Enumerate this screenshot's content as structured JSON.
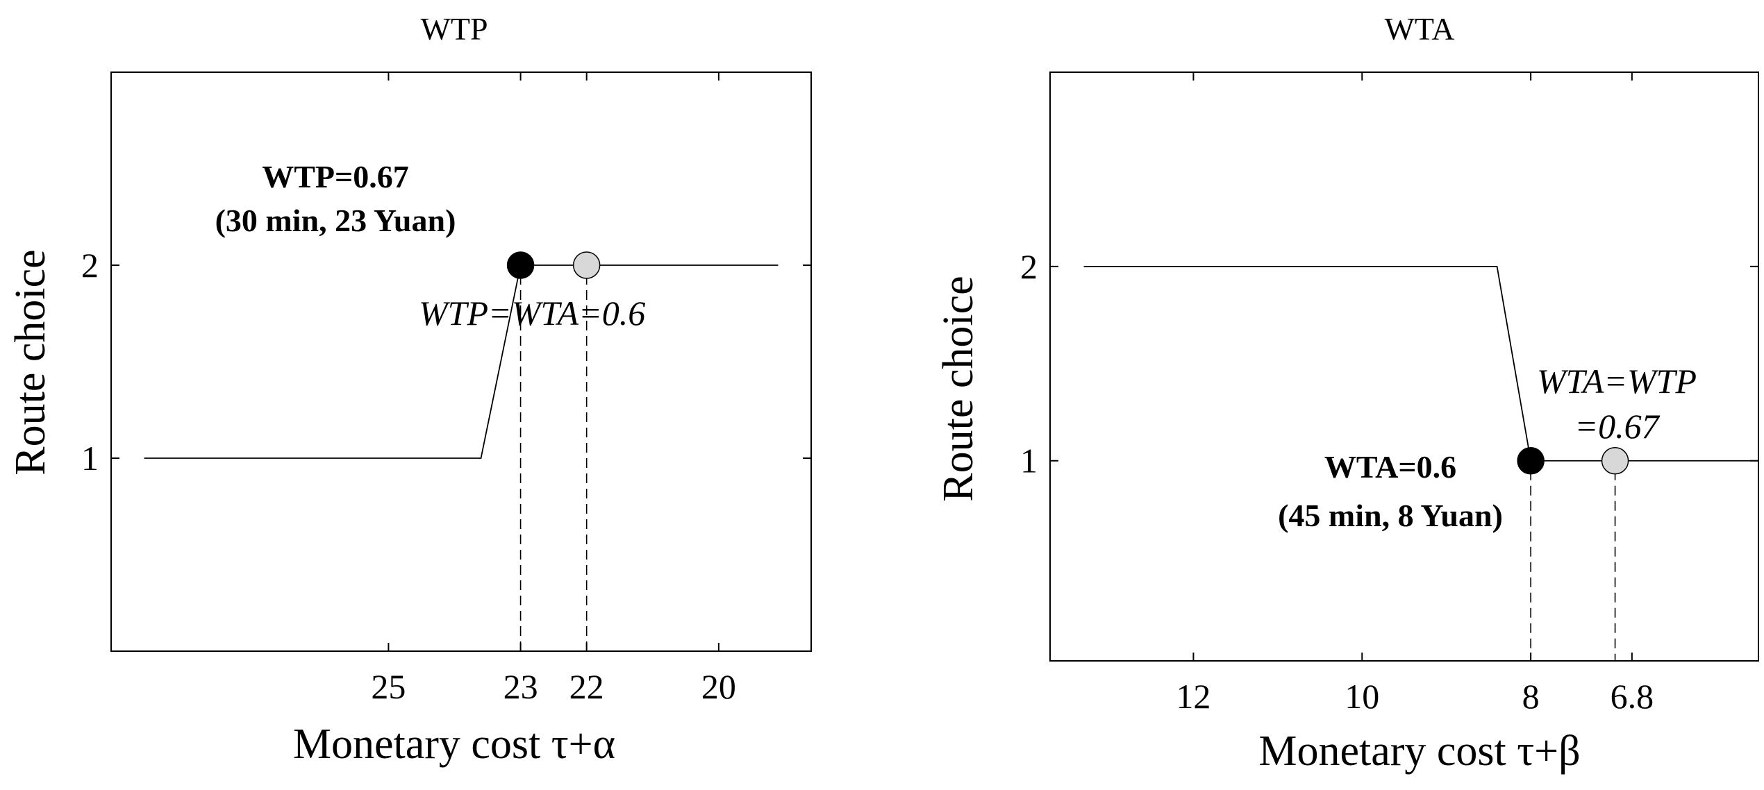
{
  "chart_data": [
    {
      "type": "line",
      "title": "WTP",
      "xlabel": "Monetary cost  τ+α",
      "ylabel": "Route choice",
      "x_reversed": true,
      "xlim": [
        29.2,
        18.6
      ],
      "ylim": [
        0,
        3.0
      ],
      "xticks": [
        {
          "value": 25,
          "label": "25"
        },
        {
          "value": 23,
          "label": "23"
        },
        {
          "value": 22,
          "label": "22"
        },
        {
          "value": 20,
          "label": "20"
        }
      ],
      "yticks": [
        {
          "value": 1,
          "label": "1"
        },
        {
          "value": 2,
          "label": "2"
        }
      ],
      "grid": false,
      "series": [
        {
          "points": [
            [
              28.7,
              1
            ],
            [
              23.6,
              1
            ],
            [
              23.0,
              2
            ],
            [
              19.1,
              2
            ]
          ]
        }
      ],
      "markers": [
        {
          "x": 23,
          "y": 2,
          "fill": "#000000"
        },
        {
          "x": 22,
          "y": 2,
          "fill": "#d8d8d8"
        }
      ],
      "dropLines": [
        23,
        22
      ],
      "annotations": [
        {
          "lines": [
            "WTP=0.67",
            "(30 min, 23 Yuan)"
          ],
          "style": "bold"
        },
        {
          "lines": [
            "WTP=WTA=0.6"
          ],
          "style": "italic"
        }
      ]
    },
    {
      "type": "line",
      "title": "WTA",
      "xlabel": "Monetary cost  τ+β",
      "ylabel": "Route choice",
      "x_reversed": true,
      "xlim": [
        13.7,
        5.3
      ],
      "ylim": [
        -0.03,
        3.0
      ],
      "xticks": [
        {
          "value": 12,
          "label": "12"
        },
        {
          "value": 10,
          "label": "10"
        },
        {
          "value": 8,
          "label": "8"
        },
        {
          "value": 6.8,
          "label": "6.8"
        }
      ],
      "yticks": [
        {
          "value": 1,
          "label": "1"
        },
        {
          "value": 2,
          "label": "2"
        }
      ],
      "grid": false,
      "series": [
        {
          "points": [
            [
              13.3,
              2
            ],
            [
              8.4,
              2
            ],
            [
              8.0,
              1
            ],
            [
              5.3,
              1
            ]
          ]
        }
      ],
      "markers": [
        {
          "x": 8,
          "y": 1,
          "fill": "#000000"
        },
        {
          "x": 7,
          "y": 1,
          "fill": "#d8d8d8"
        }
      ],
      "dropLines": [
        8,
        7
      ],
      "annotations": [
        {
          "lines": [
            "WTA=WTP",
            "=0.67"
          ],
          "style": "italic"
        },
        {
          "lines": [
            "WTA=0.6",
            "(45 min, 8 Yuan)"
          ],
          "style": "bold"
        }
      ]
    }
  ]
}
